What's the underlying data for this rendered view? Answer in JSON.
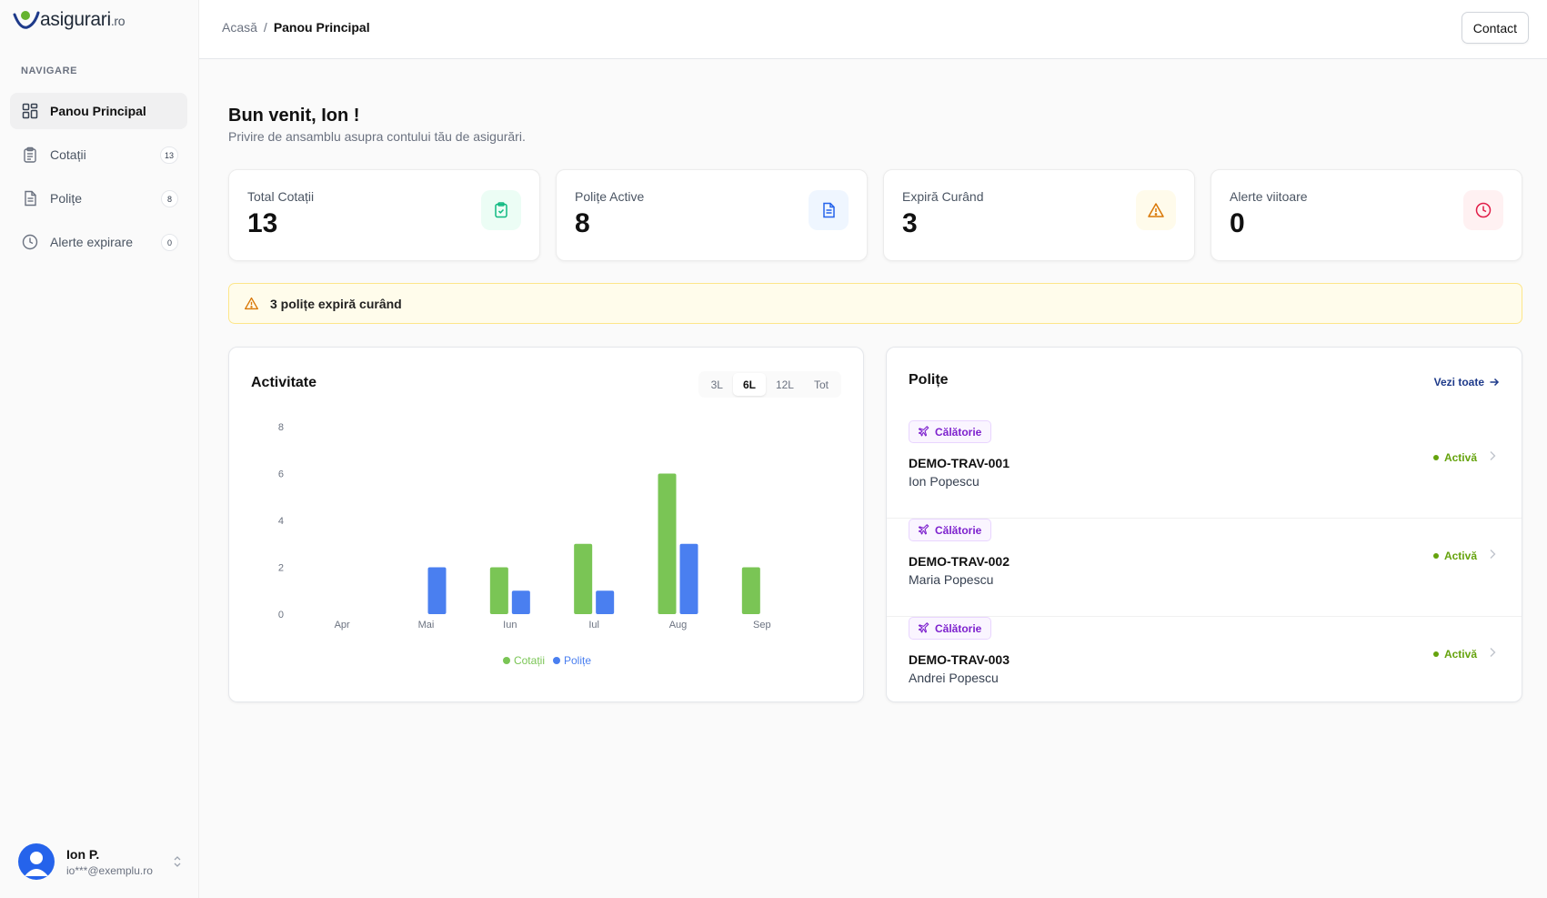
{
  "brand": {
    "name": "asigurari",
    "suffix": ".ro"
  },
  "sidebar": {
    "heading": "NAVIGARE",
    "items": [
      {
        "label": "Panou Principal",
        "icon": "dashboard-grid-icon",
        "active": true
      },
      {
        "label": "Cotații",
        "icon": "clipboard-icon",
        "badge": "13"
      },
      {
        "label": "Polițe",
        "icon": "document-icon",
        "badge": "8"
      },
      {
        "label": "Alerte expirare",
        "icon": "clock-icon",
        "badge": "0"
      }
    ],
    "user": {
      "name": "Ion P.",
      "email": "io***@exemplu.ro"
    }
  },
  "header": {
    "breadcrumb": {
      "home": "Acasă",
      "separator": "/",
      "current": "Panou Principal"
    },
    "contact_label": "Contact"
  },
  "main": {
    "welcome": "Bun venit, Ion !",
    "subtitle": "Privire de ansamblu asupra contului tău de asigurări.",
    "stats": [
      {
        "label": "Total Cotații",
        "value": "13",
        "icon": "clipboard-check-icon",
        "color": "#10b981",
        "bg": "#ecfdf5"
      },
      {
        "label": "Polițe Active",
        "value": "8",
        "icon": "document-icon",
        "color": "#2563eb",
        "bg": "#eff6ff"
      },
      {
        "label": "Expiră Curând",
        "value": "3",
        "icon": "warning-icon",
        "color": "#d97706",
        "bg": "#fffbeb"
      },
      {
        "label": "Alerte viitoare",
        "value": "0",
        "icon": "clock-icon",
        "color": "#e11d48",
        "bg": "#fff1f2"
      }
    ],
    "alert": {
      "text": "3 polițe expiră curând",
      "icon": "warning-icon"
    }
  },
  "activity": {
    "title": "Activitate",
    "ranges": [
      "3L",
      "6L",
      "12L",
      "Tot"
    ],
    "selected_range": "6L"
  },
  "chart_data": {
    "type": "bar",
    "categories": [
      "Apr",
      "Mai",
      "Iun",
      "Iul",
      "Aug",
      "Sep"
    ],
    "series": [
      {
        "name": "Cotații",
        "color": "#7ac555",
        "values": [
          0,
          0,
          2,
          3,
          6,
          2
        ]
      },
      {
        "name": "Polițe",
        "color": "#4a7ff0",
        "values": [
          0,
          2,
          1,
          1,
          3,
          0
        ]
      }
    ],
    "yticks": [
      0,
      2,
      4,
      6,
      8
    ],
    "ylim": [
      0,
      8
    ],
    "grid": false,
    "legend": "bottom"
  },
  "policies": {
    "title": "Polițe",
    "view_all": "Vezi toate",
    "items": [
      {
        "category": "Călătorie",
        "id": "DEMO-TRAV-001",
        "holder": "Ion Popescu",
        "status": "Activă"
      },
      {
        "category": "Călătorie",
        "id": "DEMO-TRAV-002",
        "holder": "Maria Popescu",
        "status": "Activă"
      },
      {
        "category": "Călătorie",
        "id": "DEMO-TRAV-003",
        "holder": "Andrei Popescu",
        "status": "Activă"
      }
    ]
  }
}
